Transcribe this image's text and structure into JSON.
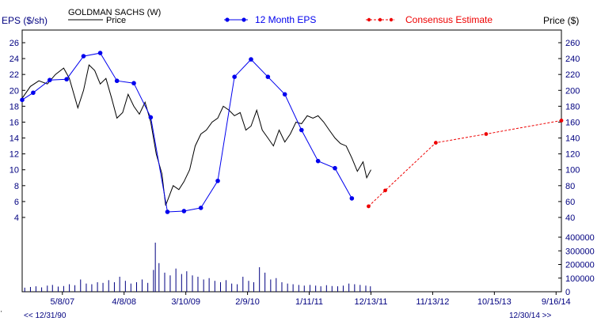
{
  "colors": {
    "price": "#000000",
    "eps": "#0000ee",
    "estimate": "#ee0000",
    "axis_label": "#000080",
    "border": "#000000",
    "volume": "#000080"
  },
  "legend": {
    "company": "GOLDMAN SACHS (W)",
    "price": "Price",
    "eps": "12 Month EPS",
    "estimate": "Consensus Estimate",
    "left_axis_title": "EPS ($/sh)",
    "right_axis_title": "Price ($)"
  },
  "footer": {
    "start": "<< 12/31/90",
    "end": "12/30/14 >>"
  },
  "chart_data": {
    "type": "line",
    "x_range": [
      "2006-10-01",
      "2014-10-15"
    ],
    "x_ticks": [
      "5/8/07",
      "4/8/08",
      "3/10/09",
      "2/9/10",
      "1/11/11",
      "12/13/11",
      "11/13/12",
      "10/15/13",
      "9/16/14"
    ],
    "eps_axis": {
      "label": "EPS ($/sh)",
      "range": [
        4,
        26
      ],
      "ticks": [
        4,
        6,
        8,
        10,
        12,
        14,
        16,
        18,
        20,
        22,
        24,
        26
      ]
    },
    "price_axis": {
      "label": "Price ($)",
      "range": [
        40,
        260
      ],
      "ticks": [
        40,
        60,
        80,
        100,
        120,
        140,
        160,
        180,
        200,
        220,
        240,
        260
      ]
    },
    "volume_axis": {
      "range": [
        0,
        400000
      ],
      "ticks": [
        0,
        100000,
        200000,
        300000,
        400000
      ]
    },
    "series": [
      {
        "name": "12 Month EPS",
        "axis": "eps",
        "points": [
          [
            "2006-10-01",
            18.8
          ],
          [
            "2006-11-30",
            19.7
          ],
          [
            "2007-02-28",
            21.3
          ],
          [
            "2007-05-31",
            21.4
          ],
          [
            "2007-08-31",
            24.3
          ],
          [
            "2007-11-30",
            24.7
          ],
          [
            "2008-02-29",
            21.2
          ],
          [
            "2008-05-31",
            20.9
          ],
          [
            "2008-08-31",
            16.6
          ],
          [
            "2008-11-30",
            4.7
          ],
          [
            "2009-02-28",
            4.8
          ],
          [
            "2009-05-31",
            5.2
          ],
          [
            "2009-08-31",
            8.6
          ],
          [
            "2009-11-30",
            21.7
          ],
          [
            "2010-02-28",
            23.9
          ],
          [
            "2010-05-31",
            21.7
          ],
          [
            "2010-08-31",
            19.5
          ],
          [
            "2010-11-30",
            15.0
          ],
          [
            "2011-02-28",
            11.1
          ],
          [
            "2011-05-31",
            10.2
          ],
          [
            "2011-08-31",
            6.4
          ]
        ]
      },
      {
        "name": "Consensus Estimate",
        "axis": "eps",
        "points": [
          [
            "2011-11-30",
            5.4
          ],
          [
            "2012-02-29",
            7.4
          ],
          [
            "2012-11-30",
            13.4
          ],
          [
            "2013-08-31",
            14.5
          ],
          [
            "2014-10-15",
            16.2
          ]
        ]
      },
      {
        "name": "Price",
        "axis": "price",
        "points": [
          [
            "2006-10-01",
            190
          ],
          [
            "2006-11-15",
            205
          ],
          [
            "2006-12-31",
            212
          ],
          [
            "2007-02-15",
            208
          ],
          [
            "2007-03-31",
            220
          ],
          [
            "2007-05-15",
            228
          ],
          [
            "2007-06-15",
            215
          ],
          [
            "2007-07-31",
            178
          ],
          [
            "2007-08-31",
            200
          ],
          [
            "2007-09-30",
            232
          ],
          [
            "2007-10-31",
            225
          ],
          [
            "2007-11-30",
            208
          ],
          [
            "2007-12-31",
            215
          ],
          [
            "2008-01-31",
            190
          ],
          [
            "2008-02-29",
            165
          ],
          [
            "2008-03-31",
            172
          ],
          [
            "2008-04-30",
            195
          ],
          [
            "2008-05-31",
            180
          ],
          [
            "2008-06-30",
            170
          ],
          [
            "2008-07-31",
            185
          ],
          [
            "2008-08-31",
            160
          ],
          [
            "2008-09-30",
            120
          ],
          [
            "2008-10-31",
            95
          ],
          [
            "2008-11-20",
            55
          ],
          [
            "2008-12-31",
            80
          ],
          [
            "2009-01-31",
            75
          ],
          [
            "2009-02-28",
            85
          ],
          [
            "2009-03-31",
            100
          ],
          [
            "2009-04-30",
            130
          ],
          [
            "2009-05-31",
            145
          ],
          [
            "2009-06-30",
            150
          ],
          [
            "2009-07-31",
            160
          ],
          [
            "2009-08-31",
            165
          ],
          [
            "2009-09-30",
            180
          ],
          [
            "2009-10-31",
            175
          ],
          [
            "2009-11-30",
            168
          ],
          [
            "2009-12-31",
            172
          ],
          [
            "2010-01-31",
            150
          ],
          [
            "2010-02-28",
            155
          ],
          [
            "2010-03-31",
            175
          ],
          [
            "2010-04-30",
            150
          ],
          [
            "2010-05-31",
            140
          ],
          [
            "2010-06-30",
            130
          ],
          [
            "2010-07-31",
            150
          ],
          [
            "2010-08-31",
            135
          ],
          [
            "2010-09-30",
            145
          ],
          [
            "2010-10-31",
            160
          ],
          [
            "2010-11-30",
            158
          ],
          [
            "2010-12-31",
            168
          ],
          [
            "2011-01-31",
            165
          ],
          [
            "2011-02-28",
            168
          ],
          [
            "2011-03-31",
            160
          ],
          [
            "2011-04-30",
            150
          ],
          [
            "2011-05-31",
            140
          ],
          [
            "2011-06-30",
            133
          ],
          [
            "2011-07-31",
            130
          ],
          [
            "2011-08-31",
            115
          ],
          [
            "2011-09-30",
            98
          ],
          [
            "2011-10-31",
            110
          ],
          [
            "2011-11-20",
            90
          ],
          [
            "2011-12-13",
            100
          ]
        ]
      },
      {
        "name": "Volume",
        "axis": "volume",
        "points": [
          [
            "2006-10-15",
            30000
          ],
          [
            "2006-11-15",
            35000
          ],
          [
            "2006-12-15",
            40000
          ],
          [
            "2007-01-15",
            32000
          ],
          [
            "2007-02-15",
            45000
          ],
          [
            "2007-03-15",
            50000
          ],
          [
            "2007-04-15",
            38000
          ],
          [
            "2007-05-15",
            42000
          ],
          [
            "2007-06-15",
            55000
          ],
          [
            "2007-07-15",
            48000
          ],
          [
            "2007-08-15",
            90000
          ],
          [
            "2007-09-15",
            60000
          ],
          [
            "2007-10-15",
            55000
          ],
          [
            "2007-11-15",
            70000
          ],
          [
            "2007-12-15",
            65000
          ],
          [
            "2008-01-15",
            85000
          ],
          [
            "2008-02-15",
            70000
          ],
          [
            "2008-03-15",
            110000
          ],
          [
            "2008-04-15",
            80000
          ],
          [
            "2008-05-15",
            60000
          ],
          [
            "2008-06-15",
            70000
          ],
          [
            "2008-07-15",
            90000
          ],
          [
            "2008-08-15",
            65000
          ],
          [
            "2008-09-15",
            160000
          ],
          [
            "2008-09-25",
            360000
          ],
          [
            "2008-10-15",
            210000
          ],
          [
            "2008-11-15",
            140000
          ],
          [
            "2008-12-15",
            120000
          ],
          [
            "2009-01-15",
            170000
          ],
          [
            "2009-02-15",
            130000
          ],
          [
            "2009-03-15",
            150000
          ],
          [
            "2009-04-15",
            120000
          ],
          [
            "2009-05-15",
            110000
          ],
          [
            "2009-06-15",
            90000
          ],
          [
            "2009-07-15",
            100000
          ],
          [
            "2009-08-15",
            80000
          ],
          [
            "2009-09-15",
            70000
          ],
          [
            "2009-10-15",
            85000
          ],
          [
            "2009-11-15",
            60000
          ],
          [
            "2009-12-15",
            55000
          ],
          [
            "2010-01-15",
            110000
          ],
          [
            "2010-02-15",
            80000
          ],
          [
            "2010-03-15",
            70000
          ],
          [
            "2010-04-15",
            180000
          ],
          [
            "2010-05-15",
            140000
          ],
          [
            "2010-06-15",
            90000
          ],
          [
            "2010-07-15",
            100000
          ],
          [
            "2010-08-15",
            70000
          ],
          [
            "2010-09-15",
            60000
          ],
          [
            "2010-10-15",
            55000
          ],
          [
            "2010-11-15",
            50000
          ],
          [
            "2010-12-15",
            45000
          ],
          [
            "2011-01-15",
            50000
          ],
          [
            "2011-02-15",
            45000
          ],
          [
            "2011-03-15",
            40000
          ],
          [
            "2011-04-15",
            48000
          ],
          [
            "2011-05-15",
            42000
          ],
          [
            "2011-06-15",
            40000
          ],
          [
            "2011-07-15",
            45000
          ],
          [
            "2011-08-15",
            60000
          ],
          [
            "2011-09-15",
            55000
          ],
          [
            "2011-10-15",
            50000
          ],
          [
            "2011-11-15",
            45000
          ],
          [
            "2011-12-10",
            40000
          ]
        ]
      }
    ],
    "legend_position": "top",
    "grid": false
  }
}
